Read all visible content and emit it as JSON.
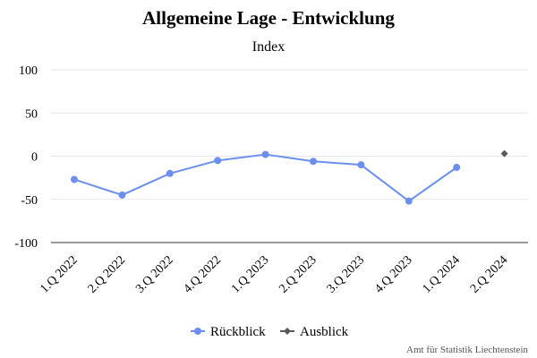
{
  "chart_data": {
    "type": "line",
    "title": "Allgemeine Lage - Entwicklung",
    "subtitle": "Index",
    "categories": [
      "1.Q 2022",
      "2.Q 2022",
      "3.Q 2022",
      "4.Q 2022",
      "1.Q 2023",
      "2.Q 2023",
      "3.Q 2023",
      "4.Q 2023",
      "1.Q 2024",
      "2.Q 2024"
    ],
    "ylim": [
      -100,
      100
    ],
    "yticks": [
      100,
      50,
      0,
      -50,
      -100
    ],
    "grid": true,
    "legend_position": "bottom-center",
    "series": [
      {
        "name": "Rückblick",
        "color": "#6b8ff0",
        "marker": "circle",
        "values": [
          -27,
          -45,
          -20,
          -5,
          2,
          -6,
          -10,
          -52,
          -13,
          null
        ]
      },
      {
        "name": "Ausblick",
        "color": "#595959",
        "marker": "diamond",
        "values": [
          null,
          null,
          null,
          null,
          null,
          null,
          null,
          null,
          null,
          3
        ]
      }
    ]
  },
  "credit": "Amt für Statistik Liechtenstein"
}
